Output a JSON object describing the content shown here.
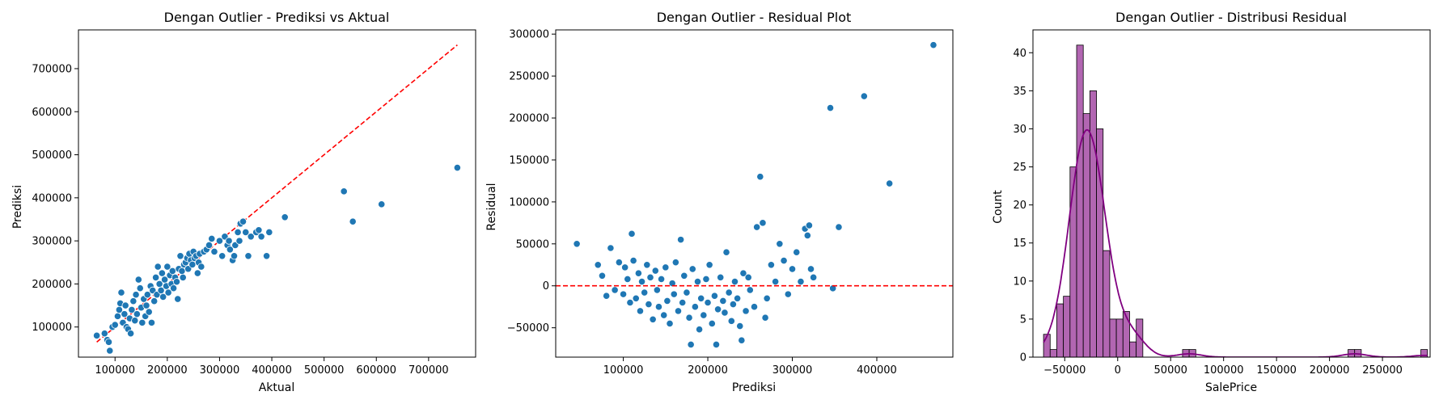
{
  "chart_data": [
    {
      "type": "scatter",
      "title": "Dengan Outlier - Prediksi vs Aktual",
      "xlabel": "Aktual",
      "ylabel": "Prediksi",
      "xlim": [
        30000,
        790000
      ],
      "ylim": [
        30000,
        790000
      ],
      "xticks": [
        100000,
        200000,
        300000,
        400000,
        500000,
        600000,
        700000
      ],
      "yticks": [
        100000,
        200000,
        300000,
        400000,
        500000,
        600000,
        700000
      ],
      "xticklabels": [
        "100000",
        "200000",
        "300000",
        "400000",
        "500000",
        "600000",
        "700000"
      ],
      "yticklabels": [
        "100000",
        "200000",
        "300000",
        "400000",
        "500000",
        "600000",
        "700000"
      ],
      "point_color": "#1f77b4",
      "reference_line": {
        "color": "#ff0000",
        "style": "dashed",
        "x": [
          65000,
          755000
        ],
        "y": [
          65000,
          755000
        ]
      },
      "points": [
        [
          65000,
          80000
        ],
        [
          80000,
          85000
        ],
        [
          85000,
          70000
        ],
        [
          88000,
          65000
        ],
        [
          90000,
          45000
        ],
        [
          95000,
          100000
        ],
        [
          100000,
          105000
        ],
        [
          105000,
          125000
        ],
        [
          108000,
          140000
        ],
        [
          110000,
          155000
        ],
        [
          112000,
          180000
        ],
        [
          115000,
          110000
        ],
        [
          118000,
          130000
        ],
        [
          120000,
          150000
        ],
        [
          122000,
          100000
        ],
        [
          125000,
          95000
        ],
        [
          128000,
          120000
        ],
        [
          130000,
          85000
        ],
        [
          132000,
          140000
        ],
        [
          135000,
          160000
        ],
        [
          138000,
          115000
        ],
        [
          140000,
          175000
        ],
        [
          142000,
          130000
        ],
        [
          145000,
          210000
        ],
        [
          148000,
          190000
        ],
        [
          150000,
          145000
        ],
        [
          152000,
          110000
        ],
        [
          155000,
          165000
        ],
        [
          158000,
          125000
        ],
        [
          160000,
          150000
        ],
        [
          162000,
          175000
        ],
        [
          165000,
          135000
        ],
        [
          168000,
          195000
        ],
        [
          170000,
          110000
        ],
        [
          172000,
          185000
        ],
        [
          175000,
          160000
        ],
        [
          178000,
          215000
        ],
        [
          180000,
          175000
        ],
        [
          182000,
          240000
        ],
        [
          185000,
          200000
        ],
        [
          188000,
          185000
        ],
        [
          190000,
          225000
        ],
        [
          192000,
          170000
        ],
        [
          195000,
          210000
        ],
        [
          198000,
          195000
        ],
        [
          200000,
          240000
        ],
        [
          202000,
          180000
        ],
        [
          205000,
          220000
        ],
        [
          208000,
          200000
        ],
        [
          210000,
          230000
        ],
        [
          212000,
          190000
        ],
        [
          215000,
          215000
        ],
        [
          218000,
          205000
        ],
        [
          220000,
          165000
        ],
        [
          222000,
          235000
        ],
        [
          225000,
          265000
        ],
        [
          228000,
          230000
        ],
        [
          230000,
          215000
        ],
        [
          232000,
          245000
        ],
        [
          235000,
          250000
        ],
        [
          238000,
          260000
        ],
        [
          240000,
          235000
        ],
        [
          242000,
          270000
        ],
        [
          245000,
          255000
        ],
        [
          248000,
          245000
        ],
        [
          250000,
          275000
        ],
        [
          252000,
          260000
        ],
        [
          255000,
          265000
        ],
        [
          258000,
          225000
        ],
        [
          260000,
          250000
        ],
        [
          262000,
          270000
        ],
        [
          265000,
          240000
        ],
        [
          270000,
          275000
        ],
        [
          275000,
          280000
        ],
        [
          280000,
          290000
        ],
        [
          285000,
          305000
        ],
        [
          290000,
          275000
        ],
        [
          300000,
          300000
        ],
        [
          305000,
          265000
        ],
        [
          310000,
          310000
        ],
        [
          315000,
          290000
        ],
        [
          318000,
          300000
        ],
        [
          320000,
          280000
        ],
        [
          325000,
          255000
        ],
        [
          328000,
          265000
        ],
        [
          330000,
          290000
        ],
        [
          335000,
          320000
        ],
        [
          338000,
          300000
        ],
        [
          340000,
          340000
        ],
        [
          345000,
          345000
        ],
        [
          350000,
          320000
        ],
        [
          355000,
          265000
        ],
        [
          360000,
          310000
        ],
        [
          370000,
          320000
        ],
        [
          375000,
          325000
        ],
        [
          380000,
          310000
        ],
        [
          390000,
          265000
        ],
        [
          395000,
          320000
        ],
        [
          425000,
          355000
        ],
        [
          538000,
          415000
        ],
        [
          555000,
          345000
        ],
        [
          610000,
          385000
        ],
        [
          755000,
          470000
        ]
      ]
    },
    {
      "type": "scatter",
      "title": "Dengan Outlier - Residual Plot",
      "xlabel": "Prediksi",
      "ylabel": "Residual",
      "xlim": [
        20000,
        490000
      ],
      "ylim": [
        -85000,
        305000
      ],
      "xticks": [
        100000,
        200000,
        300000,
        400000
      ],
      "yticks": [
        -50000,
        0,
        50000,
        100000,
        150000,
        200000,
        250000,
        300000
      ],
      "xticklabels": [
        "100000",
        "200000",
        "300000",
        "400000"
      ],
      "yticklabels": [
        "−50000",
        "0",
        "50000",
        "100000",
        "150000",
        "200000",
        "250000",
        "300000"
      ],
      "point_color": "#1f77b4",
      "reference_line": {
        "color": "#ff0000",
        "style": "dashed",
        "y": 0
      },
      "points": [
        [
          45000,
          50000
        ],
        [
          70000,
          25000
        ],
        [
          75000,
          12000
        ],
        [
          80000,
          -12000
        ],
        [
          85000,
          45000
        ],
        [
          90000,
          -5000
        ],
        [
          95000,
          28000
        ],
        [
          100000,
          -10000
        ],
        [
          102000,
          22000
        ],
        [
          105000,
          8000
        ],
        [
          108000,
          -20000
        ],
        [
          110000,
          62000
        ],
        [
          112000,
          30000
        ],
        [
          115000,
          -15000
        ],
        [
          118000,
          15000
        ],
        [
          120000,
          -30000
        ],
        [
          122000,
          5000
        ],
        [
          125000,
          -8000
        ],
        [
          128000,
          25000
        ],
        [
          130000,
          -22000
        ],
        [
          132000,
          10000
        ],
        [
          135000,
          -40000
        ],
        [
          138000,
          18000
        ],
        [
          140000,
          -5000
        ],
        [
          142000,
          -25000
        ],
        [
          145000,
          8000
        ],
        [
          148000,
          -35000
        ],
        [
          150000,
          22000
        ],
        [
          152000,
          -18000
        ],
        [
          155000,
          -45000
        ],
        [
          158000,
          3000
        ],
        [
          160000,
          -10000
        ],
        [
          162000,
          28000
        ],
        [
          165000,
          -30000
        ],
        [
          168000,
          55000
        ],
        [
          170000,
          -20000
        ],
        [
          172000,
          12000
        ],
        [
          175000,
          -8000
        ],
        [
          178000,
          -38000
        ],
        [
          180000,
          -70000
        ],
        [
          182000,
          20000
        ],
        [
          185000,
          -25000
        ],
        [
          188000,
          5000
        ],
        [
          190000,
          -52000
        ],
        [
          192000,
          -15000
        ],
        [
          195000,
          -35000
        ],
        [
          198000,
          8000
        ],
        [
          200000,
          -20000
        ],
        [
          202000,
          25000
        ],
        [
          205000,
          -45000
        ],
        [
          208000,
          -12000
        ],
        [
          210000,
          -70000
        ],
        [
          212000,
          -28000
        ],
        [
          215000,
          10000
        ],
        [
          218000,
          -18000
        ],
        [
          220000,
          -32000
        ],
        [
          222000,
          40000
        ],
        [
          225000,
          -8000
        ],
        [
          228000,
          -42000
        ],
        [
          230000,
          -22000
        ],
        [
          232000,
          5000
        ],
        [
          235000,
          -15000
        ],
        [
          238000,
          -48000
        ],
        [
          240000,
          -65000
        ],
        [
          242000,
          15000
        ],
        [
          245000,
          -30000
        ],
        [
          248000,
          10000
        ],
        [
          250000,
          -5000
        ],
        [
          255000,
          -25000
        ],
        [
          258000,
          70000
        ],
        [
          262000,
          130000
        ],
        [
          265000,
          75000
        ],
        [
          268000,
          -38000
        ],
        [
          270000,
          -15000
        ],
        [
          275000,
          25000
        ],
        [
          280000,
          5000
        ],
        [
          285000,
          50000
        ],
        [
          290000,
          30000
        ],
        [
          295000,
          -10000
        ],
        [
          300000,
          20000
        ],
        [
          305000,
          40000
        ],
        [
          310000,
          5000
        ],
        [
          315000,
          68000
        ],
        [
          318000,
          60000
        ],
        [
          320000,
          72000
        ],
        [
          322000,
          20000
        ],
        [
          325000,
          10000
        ],
        [
          345000,
          212000
        ],
        [
          348000,
          -3000
        ],
        [
          355000,
          70000
        ],
        [
          385000,
          226000
        ],
        [
          415000,
          122000
        ],
        [
          467000,
          287000
        ]
      ]
    },
    {
      "type": "bar",
      "title": "Dengan Outlier - Distribusi Residual",
      "xlabel": "SalePrice",
      "ylabel": "Count",
      "xlim": [
        -80000,
        295000
      ],
      "ylim": [
        0,
        43
      ],
      "xticks": [
        -50000,
        0,
        50000,
        100000,
        150000,
        200000,
        250000
      ],
      "yticks": [
        0,
        5,
        10,
        15,
        20,
        25,
        30,
        35,
        40
      ],
      "xticklabels": [
        "−50000",
        "0",
        "50000",
        "100000",
        "150000",
        "200000",
        "250000"
      ],
      "yticklabels": [
        "0",
        "5",
        "10",
        "15",
        "20",
        "25",
        "30",
        "35",
        "40"
      ],
      "bar_color": "#b266b2",
      "bar_edge": "#000000",
      "kde_color": "#800080",
      "bin_start": -70000,
      "bin_width": 6250,
      "values": [
        3,
        1,
        7,
        8,
        25,
        41,
        32,
        35,
        30,
        14,
        5,
        5,
        6,
        2,
        5,
        0,
        0,
        0,
        0,
        0,
        0,
        1,
        1,
        0,
        0,
        0,
        0,
        0,
        0,
        0,
        0,
        0,
        0,
        0,
        0,
        0,
        0,
        0,
        0,
        0,
        0,
        0,
        0,
        0,
        0,
        0,
        1,
        1,
        0,
        0,
        0,
        0,
        0,
        0,
        0,
        0,
        0,
        1
      ]
    }
  ]
}
